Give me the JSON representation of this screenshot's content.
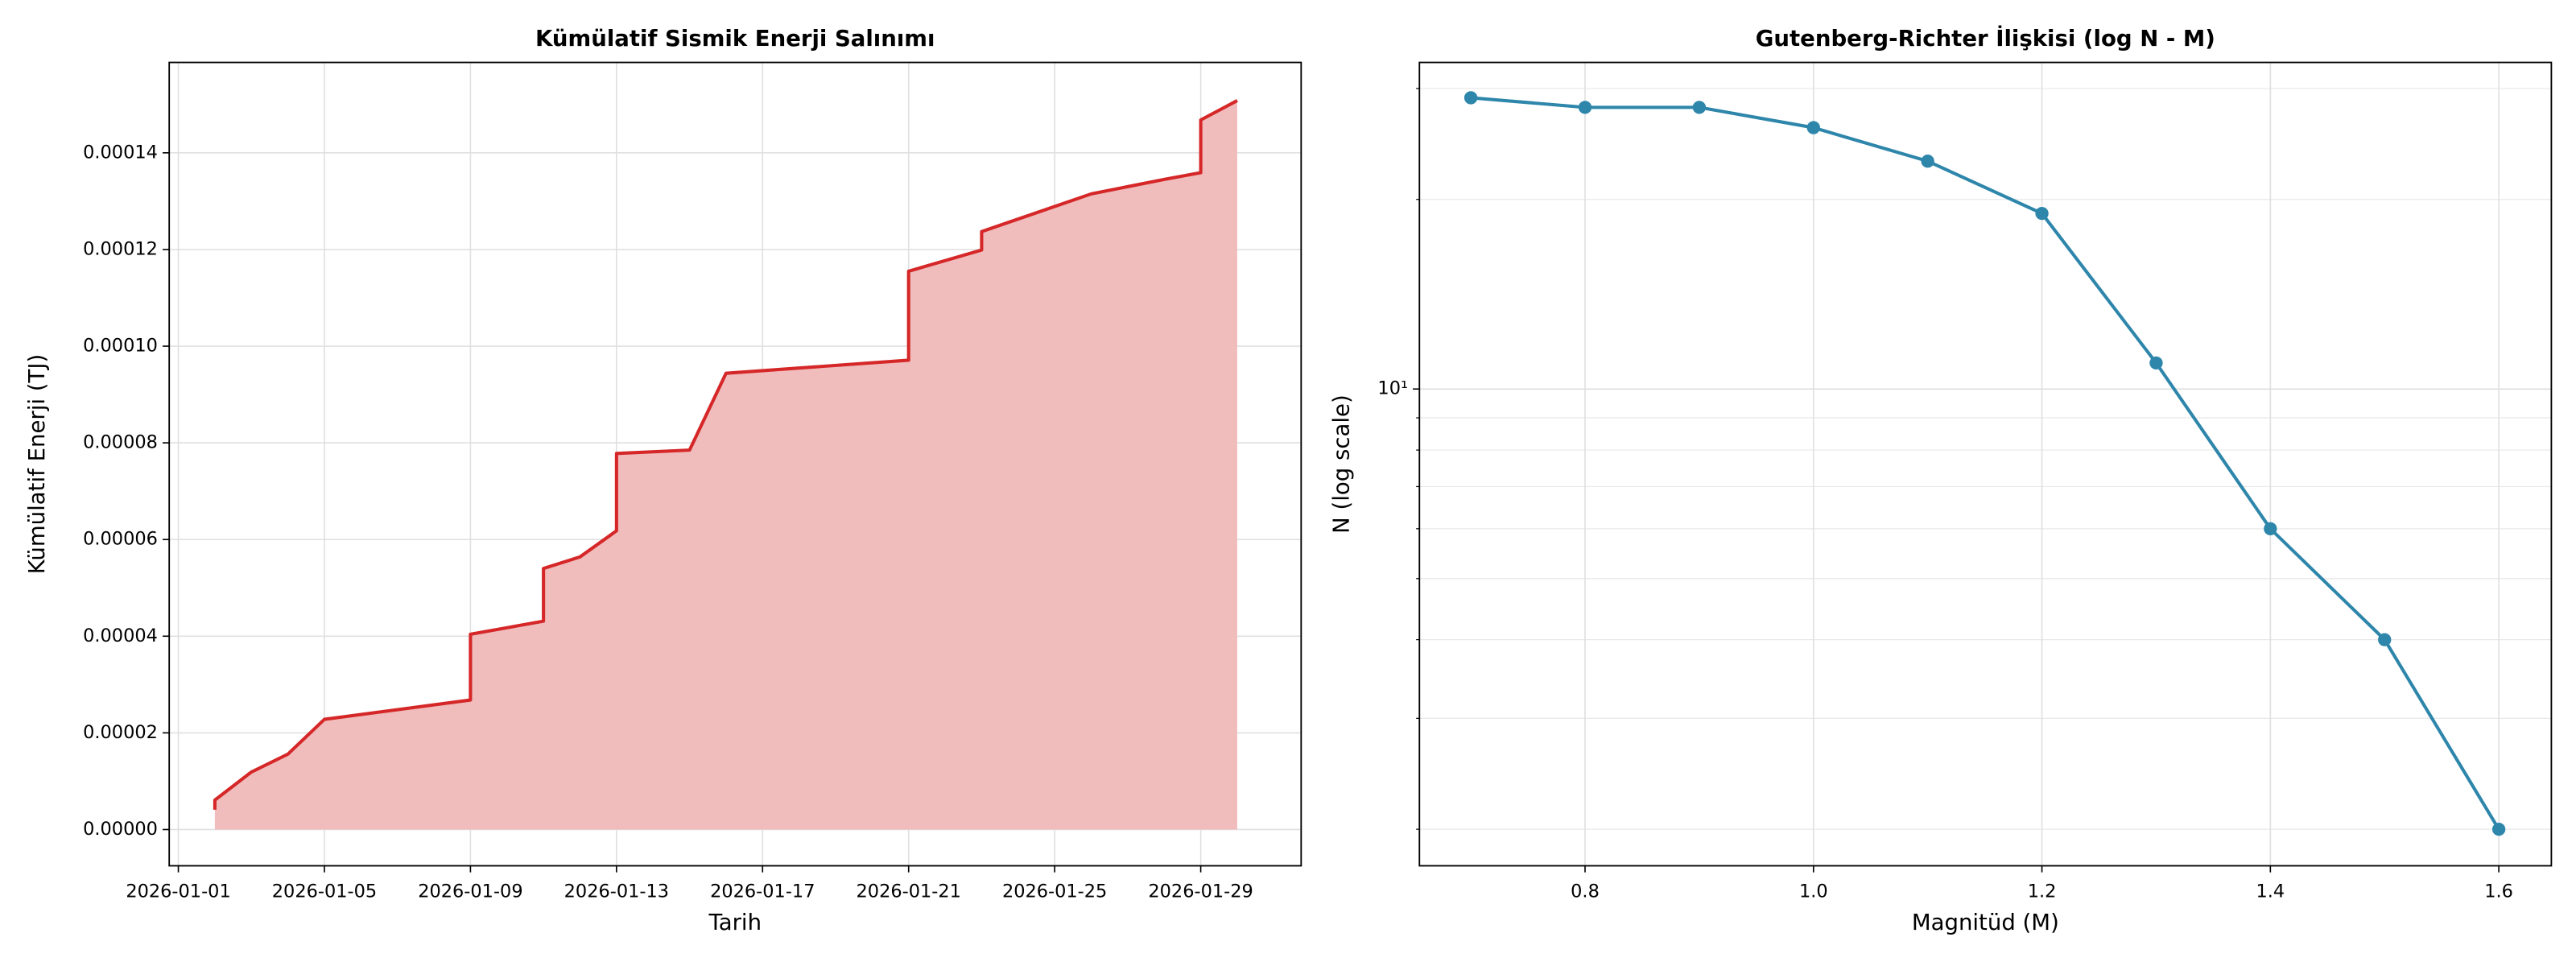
{
  "chart_data": [
    {
      "type": "area",
      "title": "Kümülatif Sismik Enerji Salınımı",
      "xlabel": "Tarih",
      "ylabel": "Kümülatif Enerji (TJ)",
      "x": [
        "2026-01-02",
        "2026-01-02",
        "2026-01-03",
        "2026-01-04",
        "2026-01-05",
        "2026-01-09",
        "2026-01-09",
        "2026-01-09",
        "2026-01-11",
        "2026-01-11",
        "2026-01-12",
        "2026-01-13",
        "2026-01-13",
        "2026-01-15",
        "2026-01-16",
        "2026-01-21",
        "2026-01-21",
        "2026-01-21",
        "2026-01-21",
        "2026-01-23",
        "2026-01-23",
        "2026-01-26",
        "2026-01-28",
        "2026-01-29",
        "2026-01-29",
        "2026-01-30"
      ],
      "series": [
        {
          "name": "Kümülatif Enerji",
          "color": "#d62728",
          "fill": "#f0bcbc",
          "values": [
            4.1e-06,
            6.1e-06,
            1.19e-05,
            1.56e-05,
            2.28e-05,
            2.68e-05,
            3.47e-05,
            4.04e-05,
            4.31e-05,
            5.4e-05,
            5.64e-05,
            6.18e-05,
            7.78e-05,
            7.85e-05,
            9.44e-05,
            9.71e-05,
            0.0001026,
            0.0001066,
            0.0001155,
            0.0001199,
            0.0001237,
            0.0001315,
            0.0001345,
            0.0001359,
            0.0001468,
            0.0001508
          ]
        }
      ],
      "xlim": [
        "2025-12-31T18:00",
        "2026-01-31T18:00"
      ],
      "xticks": [
        "2026-01-01",
        "2026-01-05",
        "2026-01-09",
        "2026-01-13",
        "2026-01-17",
        "2026-01-21",
        "2026-01-25",
        "2026-01-29"
      ],
      "ylim": [
        -7.5e-06,
        0.0001587
      ],
      "yticks": [
        {
          "value": 0,
          "label": "0.00000"
        },
        {
          "value": 2e-05,
          "label": "0.00002"
        },
        {
          "value": 4e-05,
          "label": "0.00004"
        },
        {
          "value": 6e-05,
          "label": "0.00006"
        },
        {
          "value": 8e-05,
          "label": "0.00008"
        },
        {
          "value": 0.0001,
          "label": "0.00010"
        },
        {
          "value": 0.00012,
          "label": "0.00012"
        },
        {
          "value": 0.00014,
          "label": "0.00014"
        }
      ],
      "grid": true
    },
    {
      "type": "line",
      "title": "Gutenberg-Richter İlişkisi (log N - M)",
      "xlabel": "Magnitüd (M)",
      "ylabel": "N (log scale)",
      "x": [
        0.7,
        0.8,
        0.9,
        1.0,
        1.1,
        1.2,
        1.3,
        1.4,
        1.5,
        1.6
      ],
      "series": [
        {
          "name": "N",
          "color": "#2e86ab",
          "values": [
            29,
            28,
            28,
            26,
            23,
            19,
            11,
            6,
            4,
            2
          ]
        }
      ],
      "xlim": [
        0.655,
        1.646
      ],
      "xticks": [
        {
          "value": 0.8,
          "label": "0.8"
        },
        {
          "value": 1.0,
          "label": "1.0"
        },
        {
          "value": 1.2,
          "label": "1.2"
        },
        {
          "value": 1.4,
          "label": "1.4"
        },
        {
          "value": 1.6,
          "label": "1.6"
        }
      ],
      "ylim": [
        1.75,
        33
      ],
      "yticks": [
        {
          "value": 10,
          "label": "10¹"
        }
      ],
      "minor_yticks": [
        2,
        3,
        4,
        5,
        6,
        7,
        8,
        9,
        20,
        30
      ],
      "log_y": true,
      "grid": true
    }
  ]
}
